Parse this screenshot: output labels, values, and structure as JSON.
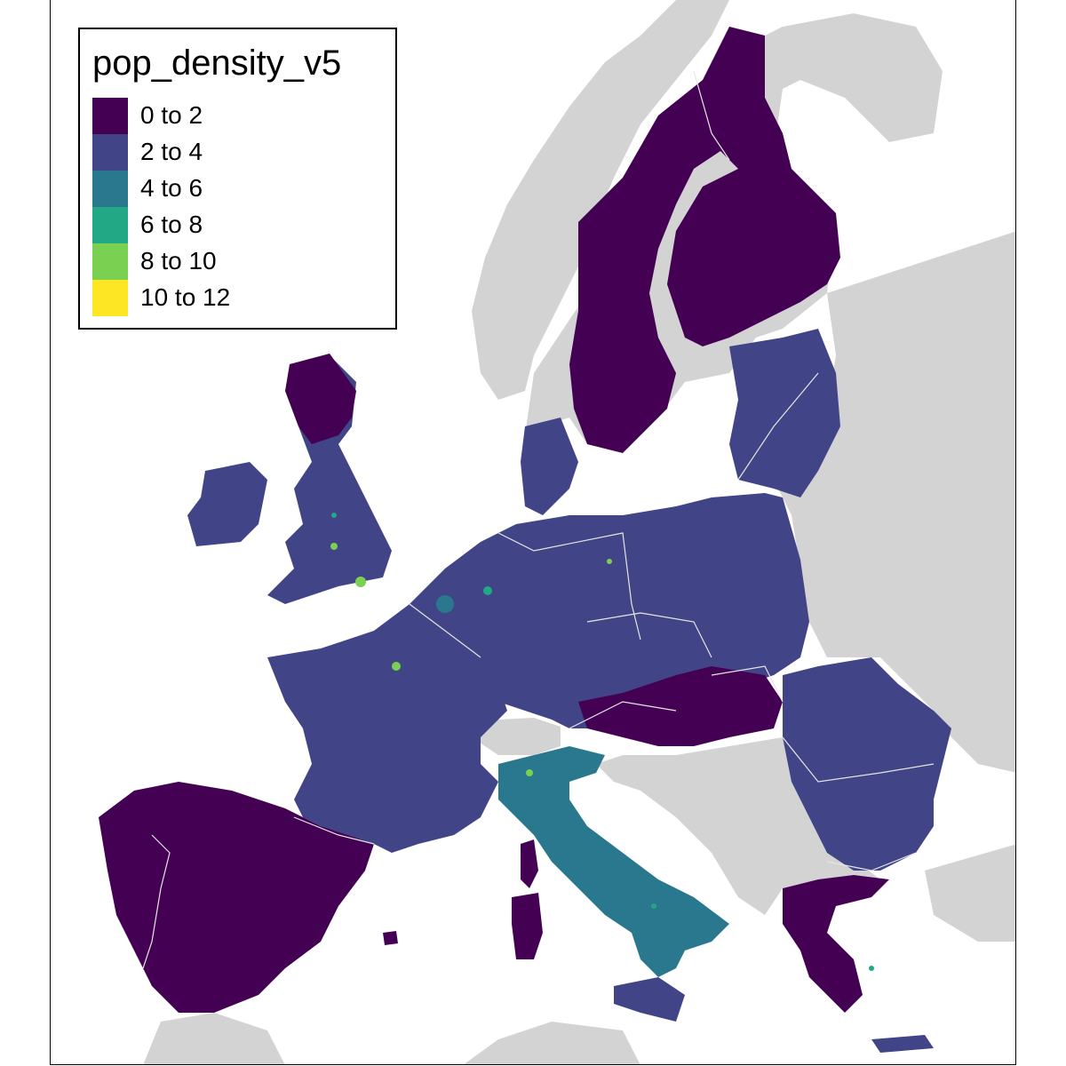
{
  "legend": {
    "title": "pop_density_v5",
    "items": [
      {
        "label": "0 to 2",
        "color": "#440154"
      },
      {
        "label": "2 to 4",
        "color": "#414487"
      },
      {
        "label": "4 to 6",
        "color": "#2a788e"
      },
      {
        "label": "6 to 8",
        "color": "#22a884"
      },
      {
        "label": "8 to 10",
        "color": "#7ad151"
      },
      {
        "label": "10 to 12",
        "color": "#fde725"
      }
    ]
  },
  "map": {
    "background_land_color": "#d3d3d3",
    "sea_color": "#ffffff",
    "border_color": "#e6e6e6"
  }
}
